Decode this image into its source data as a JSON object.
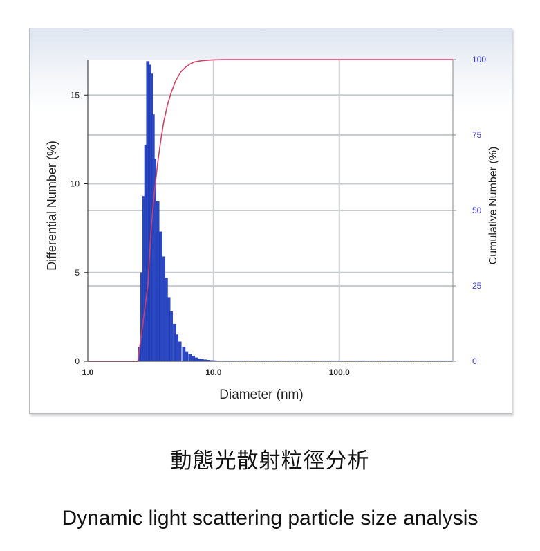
{
  "chart_data": {
    "type": "bar",
    "xlabel": "Diameter (nm)",
    "ylabel": "Differential Number (%)",
    "y2label": "Cumulative Number (%)",
    "x_scale": "log",
    "xlim": [
      1,
      800
    ],
    "ylim": [
      0,
      17
    ],
    "y2lim": [
      0,
      100
    ],
    "grid": true,
    "x_ticks": [
      "1.0",
      "10.0",
      "100.0"
    ],
    "y_ticks": [
      "0",
      "5",
      "10",
      "15"
    ],
    "y2_ticks": [
      "0",
      "25",
      "50",
      "75",
      "100"
    ],
    "colors": {
      "bars": "#2a47c4",
      "cumulative": "#d24065",
      "axis": "#222222",
      "y2_tick": "#3a3ad0",
      "grid": "#c8cbd0"
    },
    "series": [
      {
        "kind": "bar",
        "x": [
          2.6,
          2.7,
          2.8,
          2.9,
          3.0,
          3.1,
          3.2,
          3.3,
          3.4,
          3.6,
          3.8,
          4.0,
          4.2,
          4.4,
          4.6,
          4.9,
          5.1,
          5.4,
          5.8,
          6.1,
          6.5,
          6.9,
          7.3,
          7.7,
          8.1,
          8.6,
          9.1,
          9.6,
          10.2,
          10.8,
          11.4
        ],
        "values": [
          0.8,
          5.0,
          9.3,
          12.2,
          16.9,
          16.7,
          16.2,
          13.9,
          11.4,
          9.0,
          7.3,
          5.9,
          4.7,
          3.6,
          2.8,
          2.1,
          1.5,
          1.1,
          0.8,
          0.55,
          0.4,
          0.3,
          0.2,
          0.15,
          0.12,
          0.09,
          0.07,
          0.05,
          0.04,
          0.03,
          0.02
        ]
      },
      {
        "kind": "line",
        "axis": "right",
        "x": [
          1.0,
          2.5,
          3.0,
          3.2,
          3.4,
          3.6,
          3.8,
          4.0,
          4.3,
          4.6,
          5.0,
          5.5,
          6.0,
          6.5,
          7.0,
          8.0,
          9.0,
          10.0,
          12.0,
          20.0,
          100.0,
          800.0
        ],
        "values": [
          0,
          0,
          25,
          45,
          57,
          66,
          73,
          79,
          85,
          89,
          93,
          96,
          97.5,
          98.5,
          99.2,
          99.6,
          99.8,
          99.9,
          100,
          100,
          100,
          100
        ]
      }
    ]
  },
  "captions": {
    "chinese": "動態光散射粒徑分析",
    "english": "Dynamic light scattering particle size analysis"
  }
}
